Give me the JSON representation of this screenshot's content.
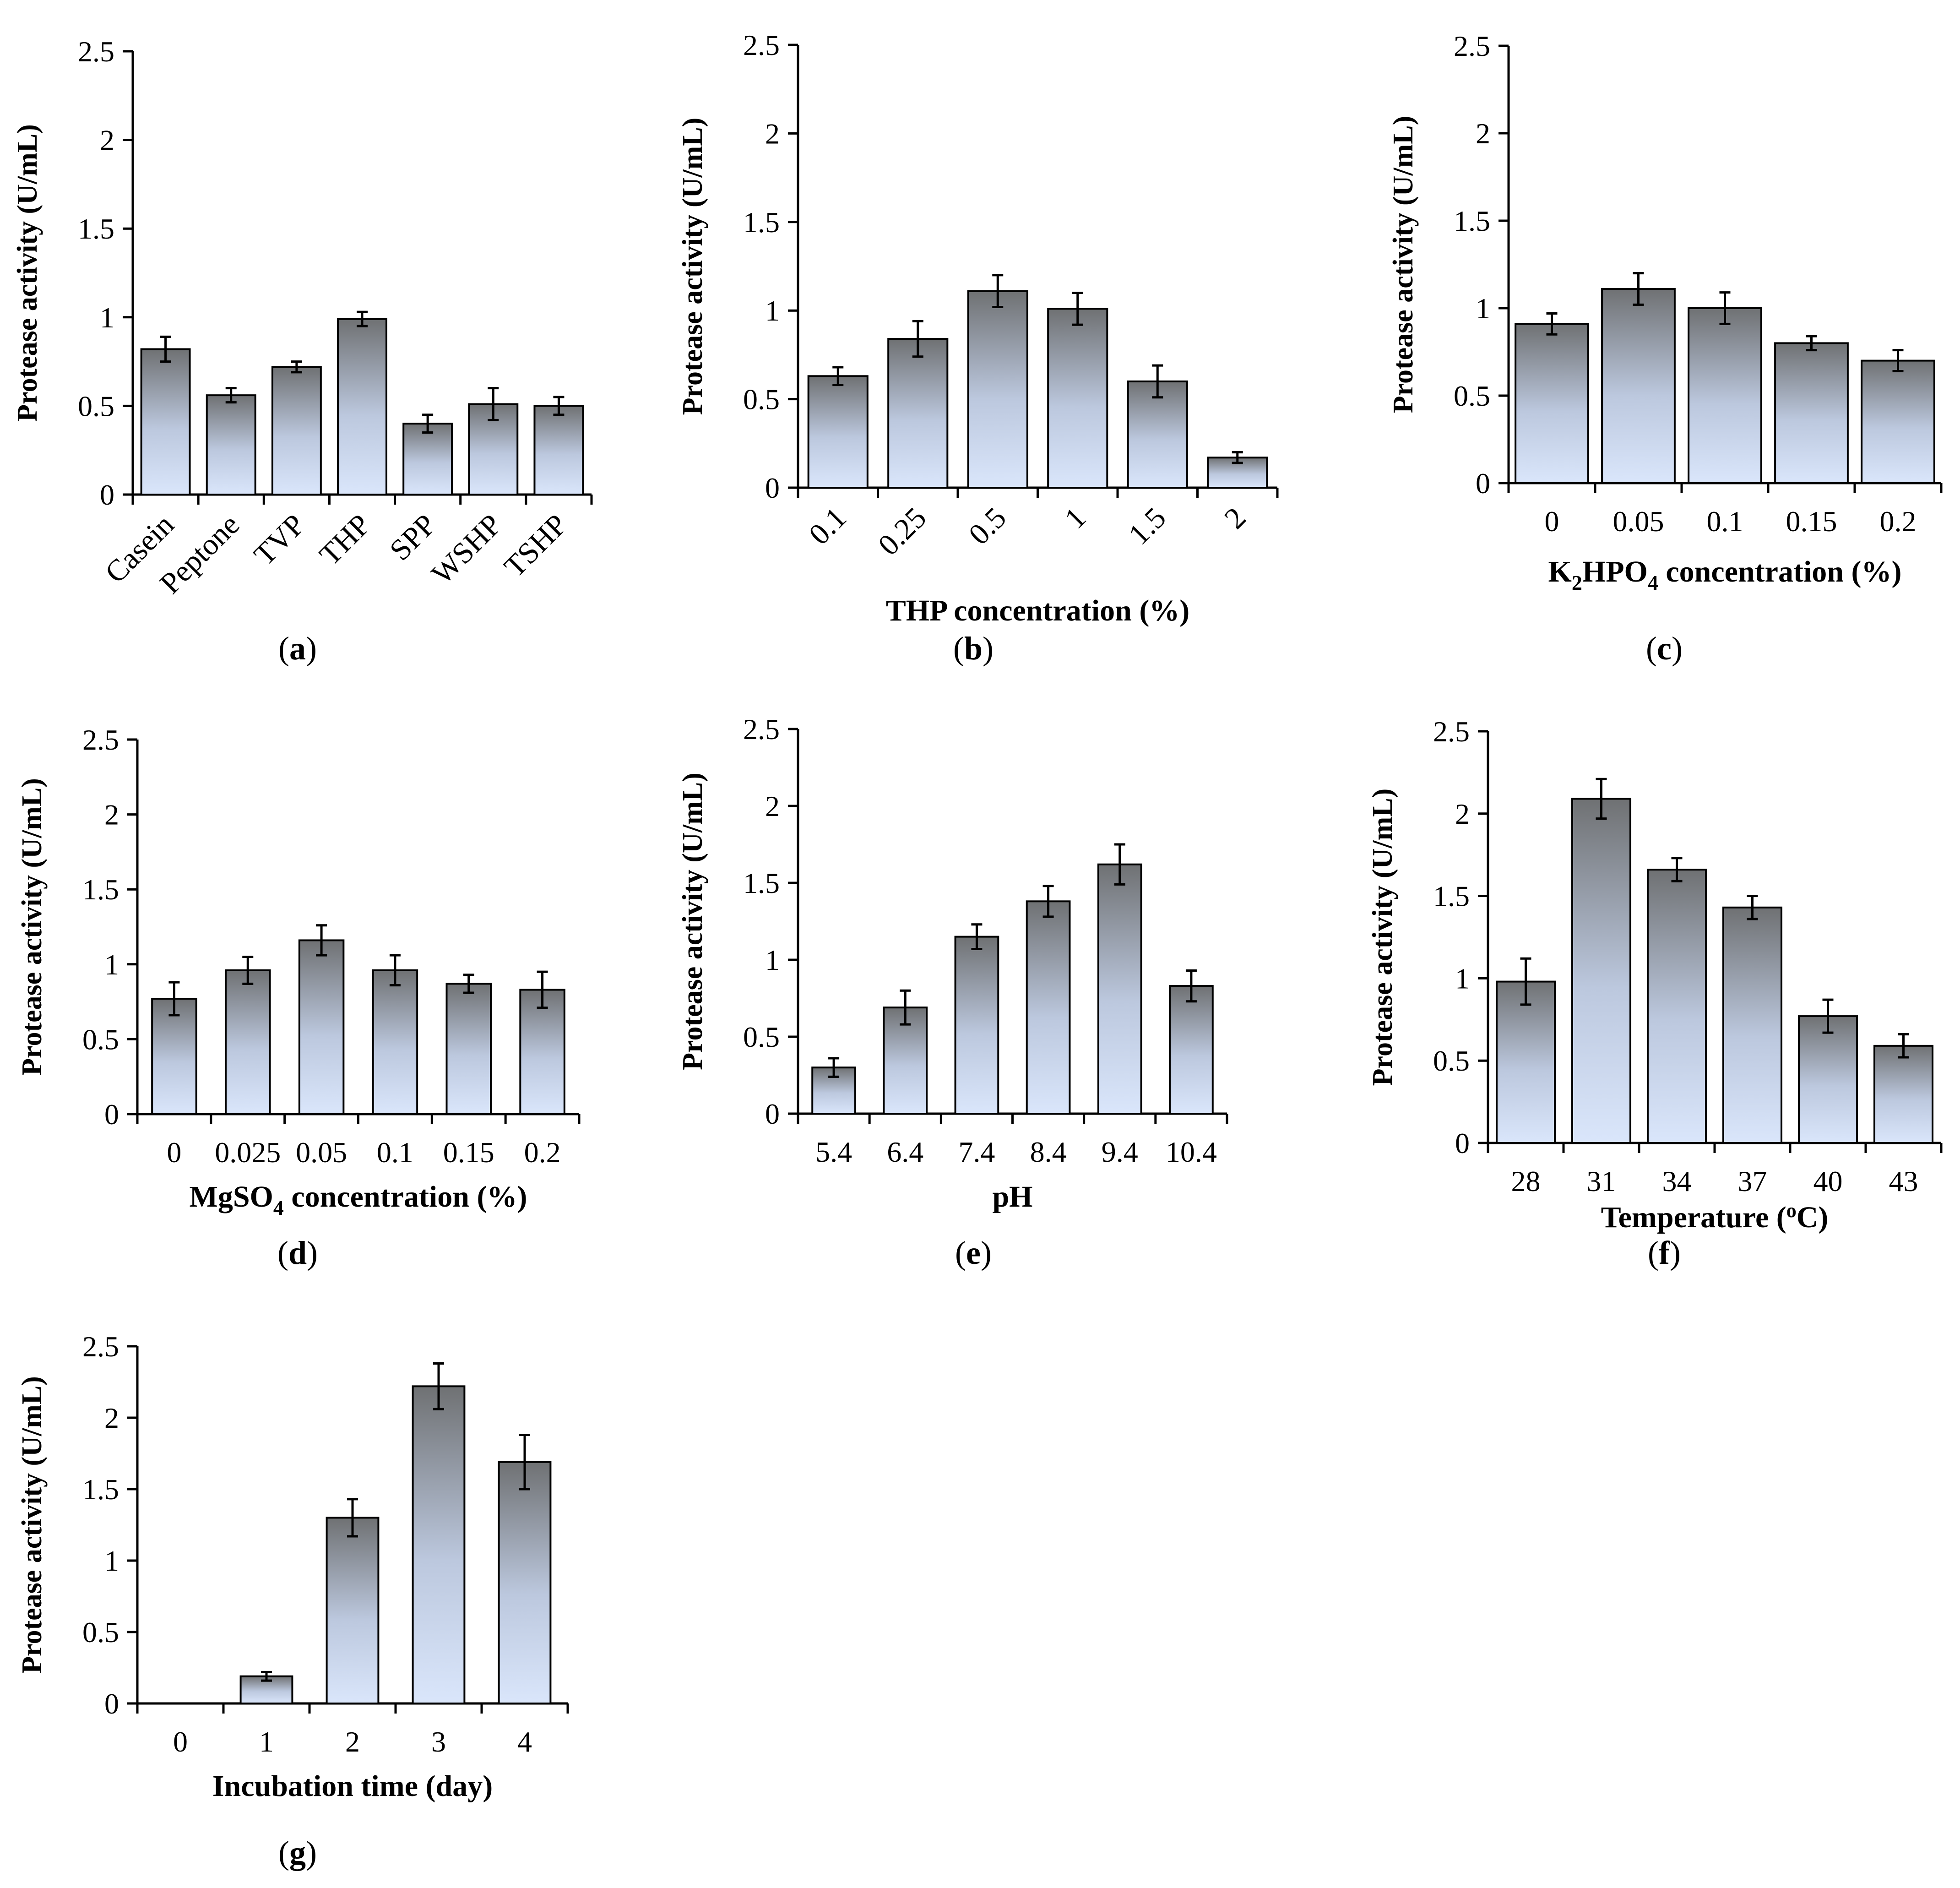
{
  "figure": {
    "y_axis_label": "Protease activity (U/mL)"
  },
  "chart_data": [
    {
      "id": "a",
      "panel_label": "a",
      "type": "bar",
      "title": "",
      "categories": [
        "Casein",
        "Peptone",
        "TVP",
        "THP",
        "SPP",
        "WSHP",
        "TSHP"
      ],
      "values": [
        0.82,
        0.56,
        0.72,
        0.99,
        0.4,
        0.51,
        0.5
      ],
      "errors": [
        0.07,
        0.04,
        0.03,
        0.04,
        0.05,
        0.09,
        0.05
      ],
      "xlabel": "",
      "ylabel": "Protease activity (U/mL)",
      "ylim": [
        0,
        2.5
      ],
      "yticks": [
        "0",
        "0.5",
        "1",
        "1.5",
        "2",
        "2.5"
      ],
      "grid": false
    },
    {
      "id": "b",
      "panel_label": "b",
      "type": "bar",
      "categories": [
        "0.1",
        "0.25",
        "0.5",
        "1",
        "1.5",
        "2"
      ],
      "values": [
        0.63,
        0.84,
        1.11,
        1.01,
        0.6,
        0.17
      ],
      "errors": [
        0.05,
        0.1,
        0.09,
        0.09,
        0.09,
        0.03
      ],
      "xlabel": "THP concentration (%)",
      "ylabel": "Protease activity (U/mL)",
      "ylim": [
        0,
        2.5
      ],
      "yticks": [
        "0",
        "0.5",
        "1",
        "1.5",
        "2",
        "2.5"
      ],
      "grid": false
    },
    {
      "id": "c",
      "panel_label": "c",
      "type": "bar",
      "categories": [
        "0",
        "0.05",
        "0.1",
        "0.15",
        "0.2"
      ],
      "values": [
        0.91,
        1.11,
        1.0,
        0.8,
        0.7
      ],
      "errors": [
        0.06,
        0.09,
        0.09,
        0.04,
        0.06
      ],
      "xlabel": "K2HPO4 concentration (%)",
      "xlabel_parts": {
        "k": "K",
        "sub1": "2",
        "mid": "HPO",
        "sub2": "4",
        "rest": " concentration (%)"
      },
      "ylabel": "Protease activity (U/mL)",
      "ylim": [
        0,
        2.5
      ],
      "yticks": [
        "0",
        "0.5",
        "1",
        "1.5",
        "2",
        "2.5"
      ],
      "grid": false
    },
    {
      "id": "d",
      "panel_label": "d",
      "type": "bar",
      "categories": [
        "0",
        "0.025",
        "0.05",
        "0.1",
        "0.15",
        "0.2"
      ],
      "values": [
        0.77,
        0.96,
        1.16,
        0.96,
        0.87,
        0.83
      ],
      "errors": [
        0.11,
        0.09,
        0.1,
        0.1,
        0.06,
        0.12
      ],
      "xlabel": "MgSO4 concentration (%)",
      "xlabel_parts": {
        "pre": "MgSO",
        "sub": "4",
        "rest": " concentration (%)"
      },
      "ylabel": "Protease activity (U/mL)",
      "ylim": [
        0,
        2.5
      ],
      "yticks": [
        "0",
        "0.5",
        "1",
        "1.5",
        "2",
        "2.5"
      ],
      "grid": false
    },
    {
      "id": "e",
      "panel_label": "e",
      "type": "bar",
      "categories": [
        "5.4",
        "6.4",
        "7.4",
        "8.4",
        "9.4",
        "10.4"
      ],
      "values": [
        0.3,
        0.69,
        1.15,
        1.38,
        1.62,
        0.83
      ],
      "errors": [
        0.06,
        0.11,
        0.08,
        0.1,
        0.13,
        0.1
      ],
      "xlabel": "pH",
      "ylabel": "Protease activity (U/mL)",
      "ylim": [
        0,
        2.5
      ],
      "yticks": [
        "0",
        "0.5",
        "1",
        "1.5",
        "2",
        "2.5"
      ],
      "grid": false
    },
    {
      "id": "f",
      "panel_label": "f",
      "type": "bar",
      "categories": [
        "28",
        "31",
        "34",
        "37",
        "40",
        "43"
      ],
      "values": [
        0.98,
        2.09,
        1.66,
        1.43,
        0.77,
        0.59
      ],
      "errors": [
        0.14,
        0.12,
        0.07,
        0.07,
        0.1,
        0.07
      ],
      "xlabel": "Temperature (oC)",
      "xlabel_parts": {
        "pre": "Temperature (",
        "sup": "o",
        "post": "C)"
      },
      "ylabel": "Protease activity (U/mL)",
      "ylim": [
        0,
        2.5
      ],
      "yticks": [
        "0",
        "0.5",
        "1",
        "1.5",
        "2",
        "2.5"
      ],
      "grid": false
    },
    {
      "id": "g",
      "panel_label": "g",
      "type": "bar",
      "categories": [
        "0",
        "1",
        "2",
        "3",
        "4"
      ],
      "values": [
        0.0,
        0.19,
        1.3,
        2.22,
        1.69
      ],
      "errors": [
        0.0,
        0.03,
        0.13,
        0.16,
        0.19
      ],
      "xlabel": "Incubation time (day)",
      "ylabel": "Protease activity (U/mL)",
      "ylim": [
        0,
        2.5
      ],
      "yticks": [
        "0",
        "0.5",
        "1",
        "1.5",
        "2",
        "2.5"
      ],
      "grid": false
    }
  ]
}
